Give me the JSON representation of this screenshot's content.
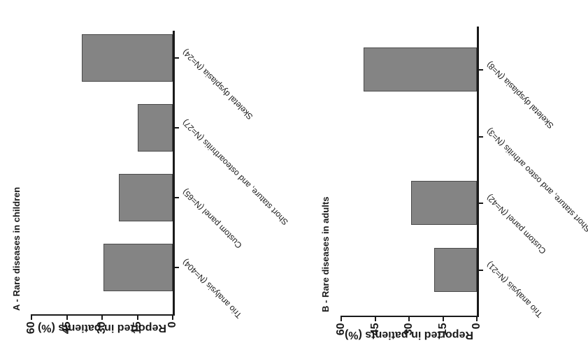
{
  "figure": {
    "description": "Two-panel bar figure, diagnostic yield reported in patients, rendered rotated 90 degrees counterclockwise",
    "background_color": "#ffffff",
    "panels": [
      "A",
      "B"
    ]
  },
  "chart_data": [
    {
      "type": "bar",
      "panel_label": "A",
      "title": "A - Rare diseases in children",
      "categories": [
        "Trio analysis (N=404)",
        "Custom panel (N=65)",
        "Short stature, and osteoarthritis (N=27)",
        "Skeletal dysplasia (N=24)"
      ],
      "values": [
        29.5,
        23,
        15,
        38.5
      ],
      "xlabel": "",
      "ylabel": "Reported in patients (%)",
      "yticks": [
        0,
        15,
        30,
        45,
        60
      ],
      "ylim": [
        0,
        60
      ],
      "grid": false,
      "legend": false,
      "bar_color": "#848484",
      "bar_border_color": "#4a4a4a",
      "axis_color": "#1a1a1a",
      "category_label_angle_deg": 45,
      "rendered_rotation_deg": -90
    },
    {
      "type": "bar",
      "panel_label": "B",
      "title": "B - Rare diseases in adults",
      "categories": [
        "Trio analysis (N=21)",
        "Custom panel (N=42)",
        "Short stature, and osteo arthritis (N=3)",
        "Skeletal dysplasia (N=8)"
      ],
      "values": [
        19,
        29,
        0,
        50
      ],
      "xlabel": "",
      "ylabel": "Reported in patients (%)",
      "yticks": [
        0,
        15,
        30,
        45,
        60
      ],
      "ylim": [
        0,
        60
      ],
      "grid": false,
      "legend": false,
      "bar_color": "#848484",
      "bar_border_color": "#4a4a4a",
      "axis_color": "#1a1a1a",
      "category_label_angle_deg": 45,
      "rendered_rotation_deg": -90
    }
  ]
}
